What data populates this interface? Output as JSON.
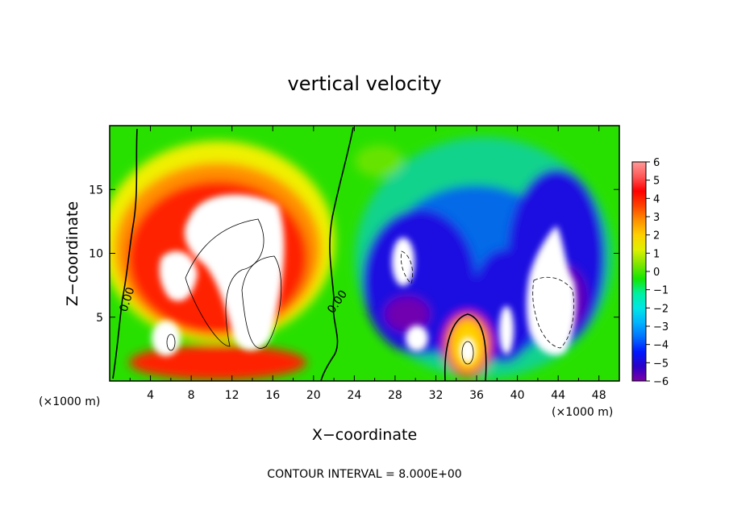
{
  "chart_data": {
    "type": "heatmap",
    "title": "vertical velocity",
    "xlabel": "X−coordinate",
    "ylabel": "Z−coordinate",
    "x_unit": "(×1000 m)",
    "xlim": [
      0,
      50
    ],
    "ylim": [
      0,
      20
    ],
    "x_ticks": [
      4,
      8,
      12,
      16,
      20,
      24,
      28,
      32,
      36,
      40,
      44,
      48
    ],
    "y_ticks": [
      5,
      10,
      15
    ],
    "colorbar": {
      "ticks": [
        "6",
        "5",
        "4",
        "3",
        "2",
        "1",
        "0",
        "−1",
        "−2",
        "−3",
        "−4",
        "−5",
        "−6"
      ],
      "range": [
        -6,
        6
      ],
      "colors": [
        "#7b00a8",
        "#2a00c8",
        "#0018ff",
        "#0070ff",
        "#00b4ff",
        "#00e6e6",
        "#00f0a0",
        "#14e600",
        "#80e600",
        "#e0f000",
        "#ffd000",
        "#ff9000",
        "#ff4000",
        "#ff0000",
        "#ff5858",
        "#ff9a9a"
      ]
    },
    "contour_labels": [
      "0.00",
      "0.00"
    ],
    "footer": "CONTOUR INTERVAL = 8.000E+00"
  }
}
